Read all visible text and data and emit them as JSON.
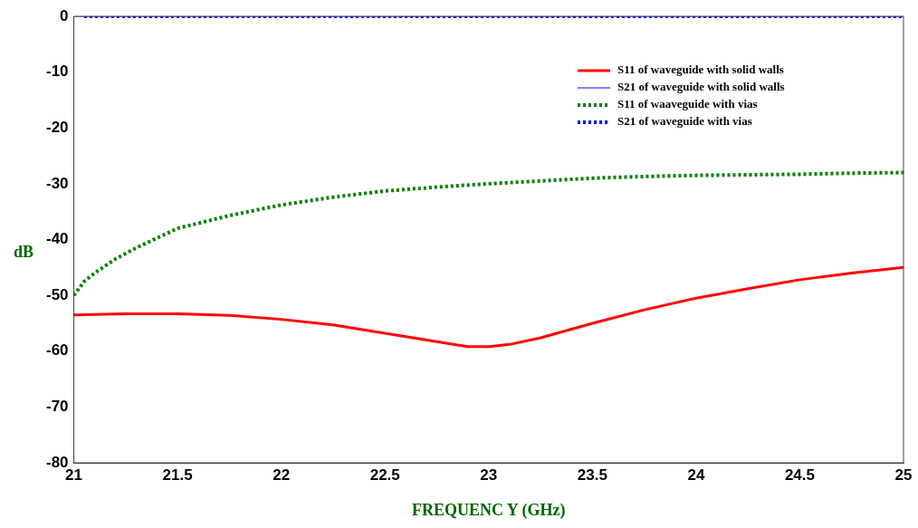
{
  "chart_data": {
    "type": "line",
    "xlabel": "FREQUENC Y (GHz)",
    "ylabel": "dB",
    "legend": "top right",
    "grid": false,
    "xlim": [
      21,
      25
    ],
    "xticks": [
      21,
      21.5,
      22,
      22.5,
      23,
      23.5,
      24,
      24.5,
      25
    ],
    "ylim": [
      -80,
      0
    ],
    "yticks": [
      -80,
      -70,
      -60,
      -50,
      -40,
      -30,
      -20,
      -10,
      0
    ],
    "series": [
      {
        "name": "S11 of waveguide with solid walls",
        "color": "#ff0000",
        "line_style": "solid",
        "x": [
          21,
          21.25,
          21.5,
          21.75,
          22,
          22.25,
          22.5,
          22.75,
          22.9,
          23,
          23.1,
          23.25,
          23.5,
          23.75,
          24,
          24.25,
          24.5,
          24.75,
          25
        ],
        "values": [
          -53.5,
          -53.3,
          -53.3,
          -53.6,
          -54.3,
          -55.3,
          -56.8,
          -58.3,
          -59.2,
          -59.2,
          -58.8,
          -57.6,
          -55,
          -52.6,
          -50.5,
          -48.8,
          -47.2,
          -46,
          -45
        ]
      },
      {
        "name": "S21 of waveguide with solid walls",
        "color": "#0000ff",
        "line_style": "solid",
        "x": [
          21,
          25
        ],
        "values": [
          0,
          0
        ]
      },
      {
        "name": "S11 of waaveguide with vias",
        "color": "#008000",
        "line_style": "dotted",
        "x": [
          21,
          21.05,
          21.1,
          21.2,
          21.3,
          21.5,
          21.75,
          22,
          22.25,
          22.5,
          22.75,
          23,
          23.25,
          23.5,
          23.75,
          24,
          24.25,
          24.5,
          24.75,
          25
        ],
        "values": [
          -50,
          -47.5,
          -46,
          -43.5,
          -41.5,
          -38,
          -35.7,
          -33.8,
          -32.4,
          -31.3,
          -30.6,
          -30,
          -29.5,
          -29,
          -28.7,
          -28.5,
          -28.4,
          -28.3,
          -28.1,
          -28
        ]
      },
      {
        "name": "S21 of waveguide with vias",
        "color": "#0000ff",
        "line_style": "dotted",
        "x": [
          21.05,
          25
        ],
        "values": [
          0,
          0
        ]
      }
    ]
  }
}
